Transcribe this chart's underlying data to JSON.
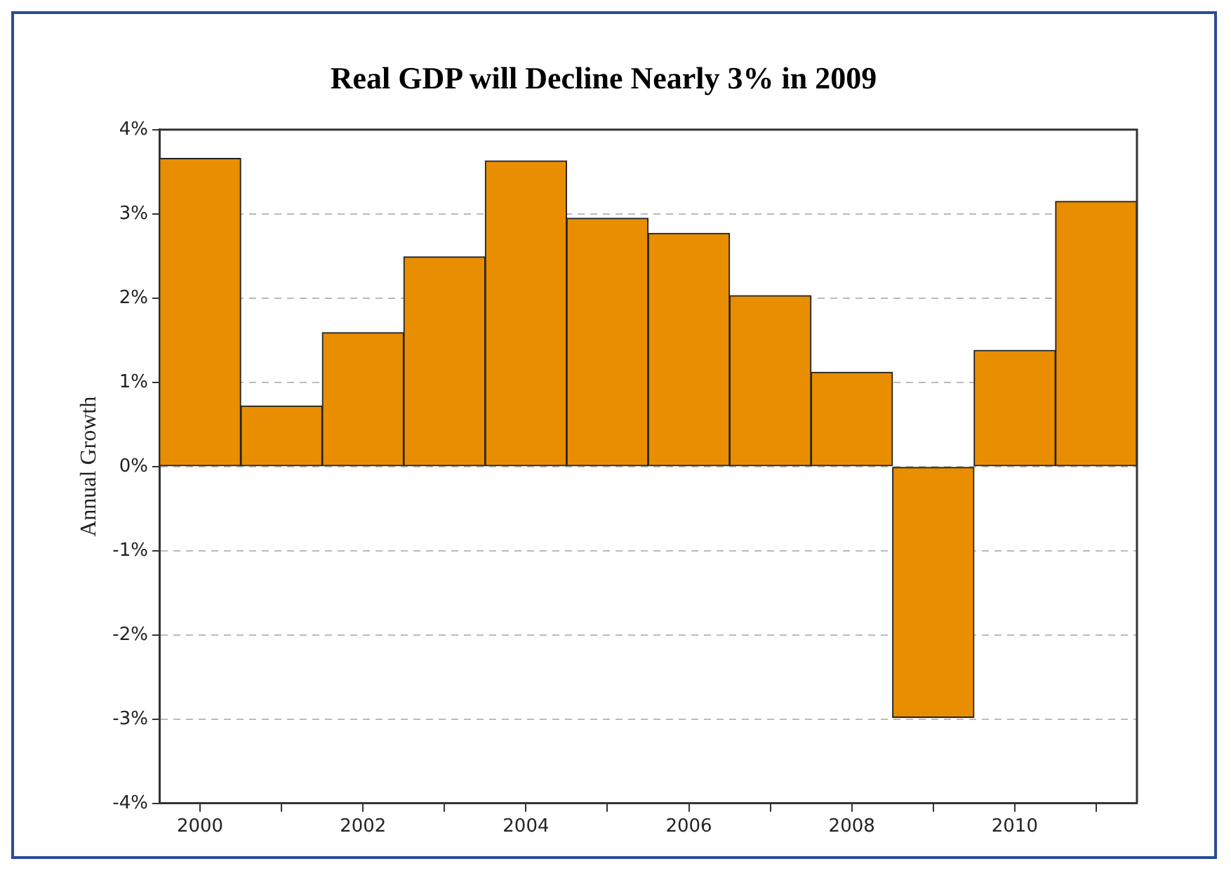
{
  "chart_data": {
    "type": "bar",
    "title": "Real GDP will Decline Nearly 3% in 2009",
    "ylabel": "Annual Growth",
    "categories": [
      "2000",
      null,
      "2002",
      null,
      "2004",
      null,
      "2006",
      null,
      "2008",
      null,
      "2010",
      null
    ],
    "values": [
      3.66,
      0.72,
      1.59,
      2.49,
      3.63,
      2.95,
      2.77,
      2.03,
      1.12,
      -2.98,
      1.38,
      3.15
    ],
    "color": "#e88e00",
    "ylim": [
      -4,
      4
    ],
    "yticks": [
      {
        "value": -4,
        "label": "-4%"
      },
      {
        "value": -3,
        "label": "-3%"
      },
      {
        "value": -2,
        "label": "-2%"
      },
      {
        "value": -1,
        "label": "-1%"
      },
      {
        "value": 0,
        "label": "0%"
      },
      {
        "value": 1,
        "label": "1%"
      },
      {
        "value": 2,
        "label": "2%"
      },
      {
        "value": 3,
        "label": "3%"
      },
      {
        "value": 4,
        "label": "4%"
      }
    ],
    "grid": "y",
    "legend": false
  }
}
